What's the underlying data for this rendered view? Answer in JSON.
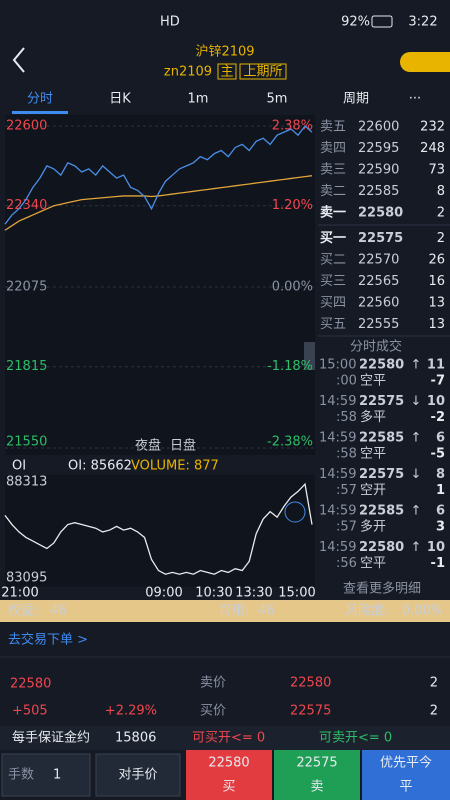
{
  "status": {
    "signal": "HD",
    "battery": "92%",
    "time": "3:22"
  },
  "header": {
    "title": "沪锌2109",
    "code": "zn2109",
    "tags": [
      "主",
      "上期所"
    ]
  },
  "tabs": [
    "分时",
    "日K",
    "1m",
    "5m",
    "周期",
    "···"
  ],
  "chart": {
    "ylim": [
      21550,
      22600
    ],
    "price_ticks": [
      22600,
      22340,
      22075,
      21815,
      21550
    ],
    "pct_ticks": [
      "2.38%",
      "1.20%",
      "0.00%",
      "-1.18%",
      "-2.38%"
    ],
    "sessions": [
      "夜盘",
      "日盘"
    ],
    "price_color": "#4a8fe8",
    "avg_color": "#e3a43a",
    "price": [
      22280,
      22310,
      22330,
      22360,
      22400,
      22430,
      22470,
      22460,
      22440,
      22480,
      22470,
      22450,
      22460,
      22440,
      22470,
      22450,
      22430,
      22440,
      22400,
      22390,
      22370,
      22330,
      22380,
      22420,
      22440,
      22460,
      22470,
      22480,
      22500,
      22490,
      22510,
      22520,
      22500,
      22530,
      22540,
      22520,
      22550,
      22560,
      22540,
      22570,
      22580,
      22590,
      22570,
      22600,
      22580
    ],
    "avg": [
      22260,
      22275,
      22290,
      22300,
      22310,
      22320,
      22330,
      22340,
      22345,
      22350,
      22355,
      22360,
      22362,
      22364,
      22366,
      22368,
      22370,
      22372,
      22372,
      22372,
      22372,
      22370,
      22372,
      22375,
      22378,
      22381,
      22384,
      22387,
      22390,
      22393,
      22396,
      22399,
      22402,
      22405,
      22408,
      22411,
      22414,
      22417,
      22420,
      22423,
      22426,
      22429,
      22432,
      22435,
      22438
    ],
    "oi_label": "OI",
    "oi_text": "OI: 85662",
    "volume_text": "VOLUME: 877",
    "oi_ylim": [
      83095,
      88313
    ],
    "oi_ticks": [
      88313,
      83095
    ],
    "oi": [
      86500,
      86000,
      85600,
      85300,
      85100,
      84900,
      84700,
      85000,
      85600,
      86000,
      86100,
      86000,
      85900,
      85800,
      85600,
      85700,
      85900,
      85700,
      85800,
      85600,
      85300,
      84100,
      83500,
      83300,
      83400,
      83300,
      83400,
      83300,
      83500,
      83400,
      83300,
      83500,
      83400,
      83600,
      83500,
      84000,
      85500,
      86300,
      86700,
      86400,
      87000,
      87500,
      87800,
      88200,
      86000
    ],
    "xticks": [
      "21:00",
      "09:00",
      "10:30",
      "13:30",
      "15:00"
    ]
  },
  "order_book": {
    "price_color": "#f0464e",
    "asks": [
      {
        "label": "卖五",
        "price": 22600,
        "volume": 232
      },
      {
        "label": "卖四",
        "price": 22595,
        "volume": 248
      },
      {
        "label": "卖三",
        "price": 22590,
        "volume": 73
      },
      {
        "label": "卖二",
        "price": 22585,
        "volume": 8
      },
      {
        "label": "卖一",
        "price": 22580,
        "volume": 2
      }
    ],
    "bids": [
      {
        "label": "买一",
        "price": 22575,
        "volume": 2
      },
      {
        "label": "买二",
        "price": 22570,
        "volume": 26
      },
      {
        "label": "买三",
        "price": 22565,
        "volume": 16
      },
      {
        "label": "买四",
        "price": 22560,
        "volume": 13
      },
      {
        "label": "买五",
        "price": 22555,
        "volume": 13
      }
    ]
  },
  "trades": {
    "title": "分时成交",
    "more": "查看更多明细",
    "rows": [
      {
        "time": "15:00",
        "sec": ":00",
        "price": 22580,
        "arrow": "↑",
        "volume": 11,
        "kind": "空平",
        "oi": -7,
        "color": "#f0464e"
      },
      {
        "time": "14:59",
        "sec": ":58",
        "price": 22575,
        "arrow": "↓",
        "volume": 10,
        "kind": "多平",
        "oi": -2,
        "color": "#2ebd68"
      },
      {
        "time": "14:59",
        "sec": ":58",
        "price": 22585,
        "arrow": "↑",
        "volume": 6,
        "kind": "空平",
        "oi": -5,
        "color": "#f0464e"
      },
      {
        "time": "14:59",
        "sec": ":57",
        "price": 22575,
        "arrow": "↓",
        "volume": 8,
        "kind": "空开",
        "oi": 1,
        "color": "#2ebd68"
      },
      {
        "time": "14:59",
        "sec": ":57",
        "price": 22585,
        "arrow": "↑",
        "volume": 6,
        "kind": "多开",
        "oi": 3,
        "color": "#f0464e"
      },
      {
        "time": "14:59",
        "sec": ":56",
        "price": 22580,
        "arrow": "↑",
        "volume": 10,
        "kind": "空平",
        "oi": -1,
        "color": "#f0464e"
      }
    ]
  },
  "account": {
    "equity_label": "权益:",
    "equity": 46,
    "available_label": "可用:",
    "available": 46,
    "risk_label": "风险度:",
    "risk": "0.00%"
  },
  "trade_link": "去交易下单 >",
  "quote": {
    "last": 22580,
    "change": "+505",
    "change_pct": "+2.29%",
    "ask_label": "卖价",
    "ask": 22580,
    "ask_volume": 2,
    "bid_label": "买价",
    "bid": 22575,
    "bid_volume": 2
  },
  "margin": {
    "label": "每手保证金约",
    "value": 15806,
    "can_buy": "可买开<= 0",
    "can_sell": "可卖开<= 0"
  },
  "order": {
    "qty_label": "手数",
    "qty": 1,
    "price_type": "对手价",
    "buy_price": 22580,
    "buy": "买",
    "sell_price": 22575,
    "sell": "卖",
    "close_label": "优先平今",
    "close": "平"
  }
}
